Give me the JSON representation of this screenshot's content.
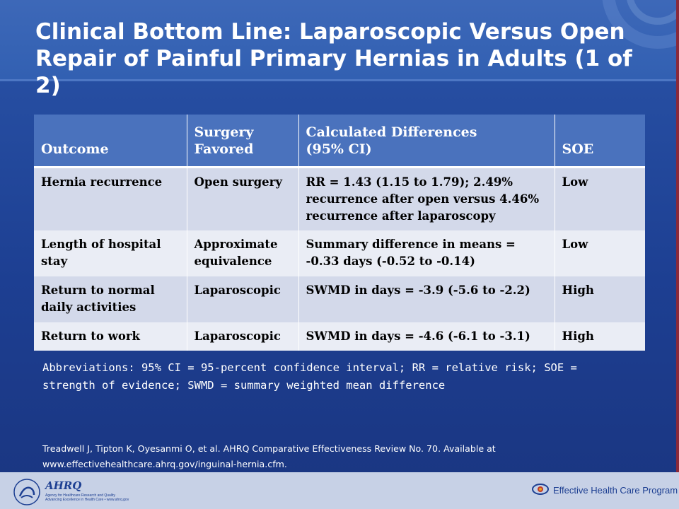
{
  "slide": {
    "title_line1": "Clinical Bottom Line: Laparoscopic Versus Open",
    "title_line2": "Repair of Painful Primary Hernias in Adults (1 of 2)"
  },
  "table": {
    "headers": {
      "outcome": "Outcome",
      "surgery_line1": "Surgery",
      "surgery_line2": "Favored",
      "diff_line1": "Calculated Differences",
      "diff_line2": "(95% CI)",
      "soe": "SOE"
    },
    "rows": [
      {
        "outcome": "Hernia recurrence",
        "surgery": "Open surgery",
        "difference": "RR = 1.43 (1.15 to 1.79); 2.49% recurrence after open versus 4.46% recurrence after laparoscopy",
        "soe": "Low"
      },
      {
        "outcome": "Length of hospital stay",
        "surgery": "Approximate equivalence",
        "difference": "Summary difference in means = -0.33 days (-0.52 to -0.14)",
        "soe": "Low"
      },
      {
        "outcome": "Return to normal daily activities",
        "surgery": "Laparoscopic",
        "difference": "SWMD in days = -3.9 (-5.6 to -2.2)",
        "soe": "High"
      },
      {
        "outcome": "Return to work",
        "surgery": "Laparoscopic",
        "difference": "SWMD in days = -4.6 (-6.1 to -3.1)",
        "soe": "High"
      }
    ]
  },
  "abbreviations": "Abbreviations: 95% CI = 95-percent confidence interval; RR = relative risk; SOE = strength of evidence; SWMD = summary weighted mean difference",
  "citation": {
    "line1": "Treadwell J, Tipton K, Oyesanmi O, et al. AHRQ Comparative Effectiveness Review No. 70. Available at",
    "line2": "www.effectivehealthcare.ahrq.gov/inguinal-hernia.cfm."
  },
  "footer": {
    "ahrq_name": "AHRQ",
    "ahrq_line1": "Agency for Healthcare Research and Quality",
    "ahrq_line2": "Advancing Excellence in Health Care • www.ahrq.gov",
    "program_name": "Effective Health Care Program"
  },
  "colors": {
    "background": "#1f3f8f",
    "title_band": "#3260b2",
    "header_row": "#4a72bd",
    "row_dark": "#d3d9ea",
    "row_light": "#eaedf5",
    "footer": "#c7d1e6"
  }
}
